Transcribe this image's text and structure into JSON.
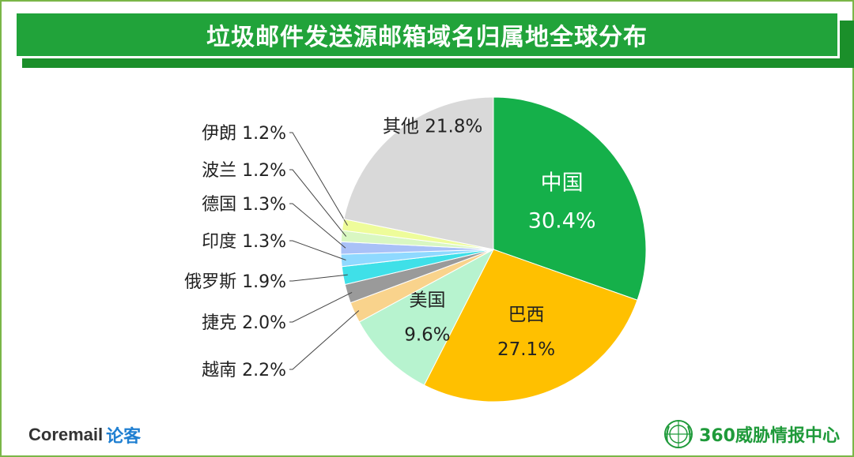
{
  "title": "垃圾邮件发送源邮箱域名归属地全球分布",
  "chart_data": {
    "type": "pie",
    "title": "垃圾邮件发送源邮箱域名归属地全球分布",
    "slices": [
      {
        "label": "中国",
        "value": 30.4,
        "display": "30.4%",
        "color": "#15b04a",
        "text_color": "#ffffff",
        "label_position": "inside"
      },
      {
        "label": "巴西",
        "value": 27.1,
        "display": "27.1%",
        "color": "#ffc000",
        "text_color": "#222222",
        "label_position": "inside"
      },
      {
        "label": "美国",
        "value": 9.6,
        "display": "9.6%",
        "color": "#b7f3cf",
        "text_color": "#222222",
        "label_position": "inside"
      },
      {
        "label": "越南",
        "value": 2.2,
        "display": "2.2%",
        "color": "#f9d38c",
        "text_color": "#222222",
        "label_position": "outside"
      },
      {
        "label": "捷克",
        "value": 2.0,
        "display": "2.0%",
        "color": "#9a9a9a",
        "text_color": "#222222",
        "label_position": "outside"
      },
      {
        "label": "俄罗斯",
        "value": 1.9,
        "display": "1.9%",
        "color": "#3fe0e8",
        "text_color": "#222222",
        "label_position": "outside"
      },
      {
        "label": "印度",
        "value": 1.3,
        "display": "1.3%",
        "color": "#8fd9ff",
        "text_color": "#222222",
        "label_position": "outside"
      },
      {
        "label": "德国",
        "value": 1.3,
        "display": "1.3%",
        "color": "#a9c1f7",
        "text_color": "#222222",
        "label_position": "outside"
      },
      {
        "label": "波兰",
        "value": 1.2,
        "display": "1.2%",
        "color": "#d9f7c2",
        "text_color": "#222222",
        "label_position": "outside"
      },
      {
        "label": "伊朗",
        "value": 1.2,
        "display": "1.2%",
        "color": "#eefc9a",
        "text_color": "#222222",
        "label_position": "outside"
      },
      {
        "label": "其他",
        "value": 21.8,
        "display": "21.8%",
        "color": "#d9d9d9",
        "text_color": "#222222",
        "label_position": "inside"
      }
    ]
  },
  "branding": {
    "left_name": "Coremail",
    "left_name_cn": "论客",
    "right_name": "360威胁情报中心"
  }
}
